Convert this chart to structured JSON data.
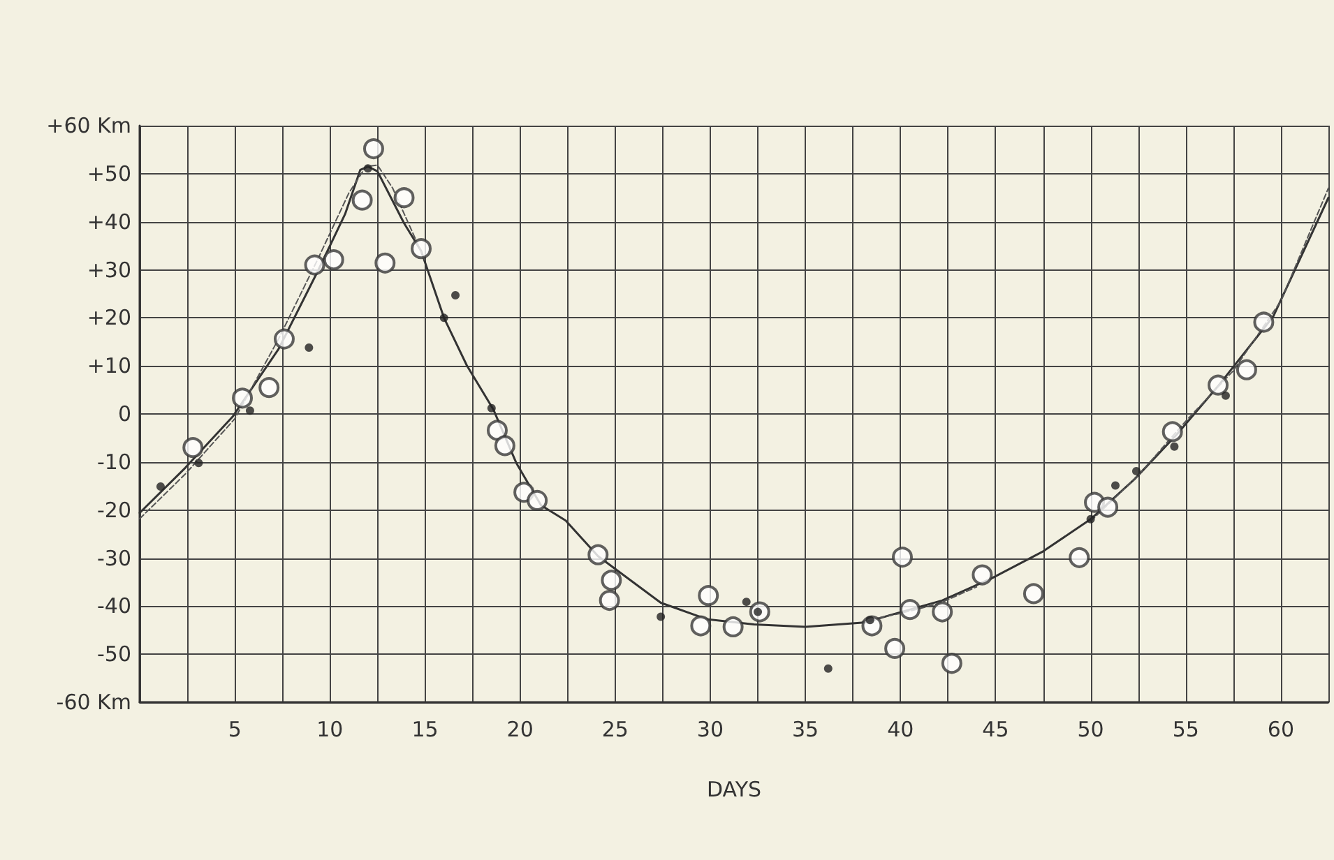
{
  "chart_data": {
    "type": "scatter",
    "xlabel": "DAYS",
    "xlim": [
      0,
      62.5
    ],
    "xticks": [
      {
        "value": 0,
        "label": null
      },
      {
        "value": 2.5,
        "label": null
      },
      5,
      {
        "value": 7.5,
        "label": null
      },
      10,
      {
        "value": 12.5,
        "label": null
      },
      15,
      {
        "value": 17.5,
        "label": null
      },
      20,
      {
        "value": 22.5,
        "label": null
      },
      25,
      {
        "value": 27.5,
        "label": null
      },
      30,
      {
        "value": 32.5,
        "label": null
      },
      35,
      {
        "value": 37.5,
        "label": null
      },
      40,
      {
        "value": 42.5,
        "label": null
      },
      45,
      {
        "value": 47.5,
        "label": null
      },
      50,
      {
        "value": 52.5,
        "label": null
      },
      55,
      {
        "value": 57.5,
        "label": null
      },
      60,
      {
        "value": 62.5,
        "label": null
      }
    ],
    "ylim": [
      -60,
      60
    ],
    "yticks": [
      {
        "value": -60,
        "label": "-60 Km"
      },
      {
        "value": -50,
        "label": "-50"
      },
      {
        "value": -40,
        "label": "-40"
      },
      {
        "value": -30,
        "label": "-30"
      },
      {
        "value": -20,
        "label": "-20"
      },
      {
        "value": -10,
        "label": "-10"
      },
      0,
      {
        "value": 10,
        "label": "+10"
      },
      {
        "value": 20,
        "label": "+20"
      },
      {
        "value": 30,
        "label": "+30"
      },
      {
        "value": 40,
        "label": "+40"
      },
      {
        "value": 50,
        "label": "+50"
      },
      {
        "value": 60,
        "label": "+60 Km"
      }
    ],
    "grid": true,
    "series": [
      {
        "type": "scatter",
        "marker": "circle",
        "color": "#3a3a3a",
        "x": [
          2.8,
          5.4,
          6.8,
          7.6,
          9.2,
          10.2,
          11.7,
          12.3,
          12.9,
          13.9,
          14.8,
          18.8,
          19.2,
          20.2,
          20.9,
          24.1,
          24.8,
          24.7,
          29.9,
          29.5,
          31.2,
          32.6,
          38.5,
          40.1,
          40.5,
          39.7,
          42.2,
          42.7,
          44.3,
          47,
          49.4,
          50.2,
          50.9,
          54.3,
          56.7,
          58.2,
          59.1
        ],
        "values": [
          -7,
          3.3,
          5.5,
          15.6,
          31,
          32.1,
          44.5,
          55.2,
          31.4,
          45,
          34.4,
          -3.4,
          -6.6,
          -16.3,
          -18,
          -29.3,
          -34.6,
          -38.8,
          -37.8,
          -44.1,
          -44.3,
          -41.2,
          -44.1,
          -29.8,
          -40.7,
          -48.8,
          -41.2,
          -51.9,
          -33.5,
          -37.4,
          -29.9,
          -18.4,
          -19.4,
          -3.7,
          6,
          9.2,
          19.1
        ]
      },
      {
        "type": "scatter",
        "marker": "circle",
        "color": "#222222",
        "x": [
          1.1,
          3.1,
          5.8,
          8.9,
          12,
          16,
          16.6,
          18.5,
          27.4,
          31.9,
          32.5,
          36.2,
          38.4,
          50,
          51.3,
          52.4,
          54.4,
          57.1
        ],
        "values": [
          -15.1,
          -10.2,
          0.7,
          13.8,
          51.1,
          20,
          24.7,
          1.2,
          -42.2,
          -39.1,
          -41.2,
          -53,
          -42.9,
          -21.9,
          -14.9,
          -11.9,
          -6.8,
          3.8
        ]
      },
      {
        "type": "line",
        "marker": "none",
        "line_style": "solid",
        "color": "#333333",
        "x": [
          0,
          2.4,
          4.9,
          7.3,
          9.4,
          10.8,
          11.6,
          12,
          12.5,
          13.9,
          14.8,
          16,
          17.2,
          18.6,
          19.8,
          21.1,
          22.4,
          24.1,
          27.4,
          29.8,
          32.3,
          35,
          38.1,
          42.2,
          44.8,
          47.5,
          50,
          52.3,
          54.5,
          56.7,
          59.6,
          62.5
        ],
        "values": [
          -20.6,
          -11.2,
          -0.5,
          13.5,
          30,
          41.6,
          50.8,
          51.5,
          50.5,
          39.7,
          33.9,
          20,
          10.1,
          0.9,
          -10.2,
          -19,
          -22.2,
          -29.6,
          -39.3,
          -42.7,
          -43.8,
          -44.3,
          -43.4,
          -38.8,
          -34.2,
          -28.6,
          -21.9,
          -13.6,
          -4.4,
          5.8,
          20.3,
          45
        ]
      },
      {
        "type": "line",
        "marker": "none",
        "line_style": "dashed",
        "color": "#555555",
        "x": [
          0,
          2.4,
          5,
          7.3,
          9.4,
          11,
          11.9,
          12.5,
          13.3,
          15,
          null,
          38,
          40,
          42,
          44,
          null,
          50,
          52.5,
          55,
          57.5,
          60,
          62.5
        ],
        "values": [
          -21.8,
          -12.5,
          -1,
          15.6,
          32.5,
          46,
          51.5,
          51.8,
          47,
          32,
          null,
          -43.2,
          -41.5,
          -39.5,
          -36,
          null,
          -22.3,
          -12.8,
          -1.5,
          9,
          23.5,
          47
        ]
      }
    ]
  }
}
